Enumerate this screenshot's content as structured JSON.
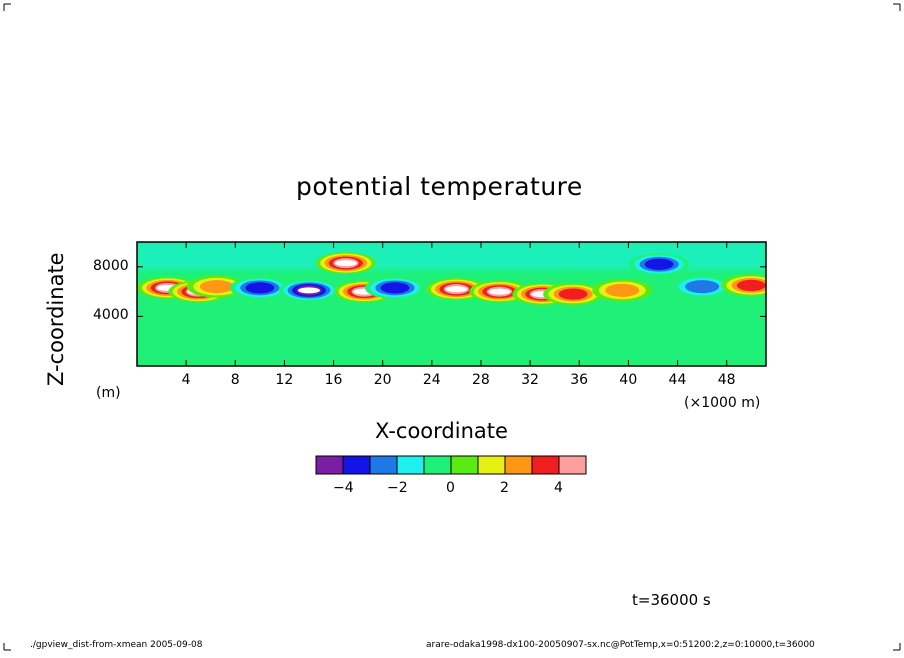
{
  "chart_data": {
    "type": "heatmap",
    "title": "potential temperature",
    "xlabel": "X-coordinate",
    "ylabel": "Z-coordinate",
    "x_unit": "(×1000 m)",
    "y_unit": "(m)",
    "x_ticks": [
      "4",
      "8",
      "12",
      "16",
      "20",
      "24",
      "28",
      "32",
      "36",
      "40",
      "44",
      "48"
    ],
    "y_ticks": [
      "4000",
      "8000"
    ],
    "xlim": [
      0,
      51.2
    ],
    "ylim": [
      0,
      10000
    ],
    "colorbar": {
      "levels": [
        -5,
        -4,
        -3,
        -2,
        -1,
        0,
        1,
        2,
        3,
        4,
        5
      ],
      "tick_labels": [
        "−4",
        "−2",
        "0",
        "2",
        "4"
      ],
      "colors": [
        "#7b1fa2",
        "#1414e6",
        "#1e78e6",
        "#1ef0f0",
        "#1ef078",
        "#5aeb14",
        "#e6f014",
        "#ff9614",
        "#f01e1e",
        "#ff9e9e"
      ]
    },
    "time_label": "t=36000 s",
    "features": [
      {
        "x": 2.5,
        "z": 6300,
        "value": 5
      },
      {
        "x": 5.0,
        "z": 6000,
        "value": 5
      },
      {
        "x": 6.5,
        "z": 6400,
        "value": 3
      },
      {
        "x": 10.0,
        "z": 6300,
        "value": -4
      },
      {
        "x": 14.0,
        "z": 6100,
        "value": -5
      },
      {
        "x": 17.0,
        "z": 8300,
        "value": 5
      },
      {
        "x": 18.5,
        "z": 6000,
        "value": 5
      },
      {
        "x": 21.0,
        "z": 6300,
        "value": -4
      },
      {
        "x": 26.0,
        "z": 6200,
        "value": 5
      },
      {
        "x": 29.5,
        "z": 6000,
        "value": 5
      },
      {
        "x": 33.0,
        "z": 5800,
        "value": 5
      },
      {
        "x": 35.5,
        "z": 5800,
        "value": 4
      },
      {
        "x": 39.5,
        "z": 6100,
        "value": 3
      },
      {
        "x": 42.5,
        "z": 8200,
        "value": -4
      },
      {
        "x": 46.0,
        "z": 6400,
        "value": -3
      },
      {
        "x": 50.0,
        "z": 6500,
        "value": 4
      }
    ]
  },
  "footer": {
    "left": "./gpview_dist-from-xmean  2005-09-08",
    "right": "arare-odaka1998-dx100-20050907-sx.nc@PotTemp,x=0:51200:2,z=0:10000,t=36000"
  }
}
